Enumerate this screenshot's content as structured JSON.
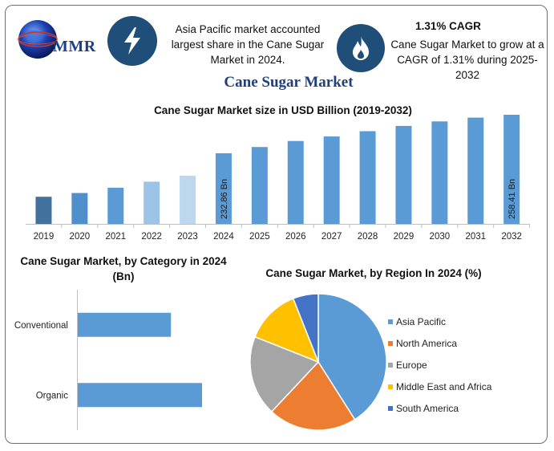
{
  "header": {
    "logo_text": "MMR",
    "info_left": "Asia Pacific market accounted largest share in the Cane Sugar Market in 2024.",
    "cagr_title": "1.31% CAGR",
    "info_right": "Cane Sugar Market to grow at a CAGR of 1.31% during 2025-2032",
    "icons": [
      "lightning-bolt-icon",
      "flame-icon"
    ]
  },
  "main_title": "Cane Sugar Market",
  "colors": {
    "bar_default": "#5b9bd5",
    "bar_2019": "#41719c",
    "bar_2020": "#4f8fca",
    "bar_2022": "#9dc3e6",
    "bar_2023": "#bdd7ee",
    "badge": "#1f4e79",
    "title": "#1f3f7a"
  },
  "chart_data": [
    {
      "type": "bar",
      "title": "Cane Sugar Market size in USD Billion (2019-2032)",
      "categories": [
        "2019",
        "2020",
        "2021",
        "2022",
        "2023",
        "2024",
        "2025",
        "2026",
        "2027",
        "2028",
        "2029",
        "2030",
        "2031",
        "2032"
      ],
      "values": [
        204,
        206.5,
        210,
        214,
        218,
        232.86,
        237,
        241,
        244,
        247.5,
        251,
        254,
        256.5,
        258.41
      ],
      "data_labels": {
        "2024": "232.86 Bn",
        "2032": "258.41 Bn"
      },
      "ylim": [
        186,
        260
      ]
    },
    {
      "type": "bar",
      "orientation": "horizontal",
      "title": "Cane Sugar Market, by Category in 2024 (Bn)",
      "categories": [
        "Conventional",
        "Organic"
      ],
      "values": [
        75,
        100
      ]
    },
    {
      "type": "pie",
      "title": "Cane Sugar Market, by Region In 2024 (%)",
      "labels": [
        "Asia Pacific",
        "North America",
        "Europe",
        "Middle East and Africa",
        "South America"
      ],
      "values": [
        41,
        21,
        19,
        13,
        6
      ],
      "colors": [
        "#5b9bd5",
        "#ed7d31",
        "#a5a5a5",
        "#ffc000",
        "#4472c4"
      ],
      "legend": "right"
    }
  ]
}
